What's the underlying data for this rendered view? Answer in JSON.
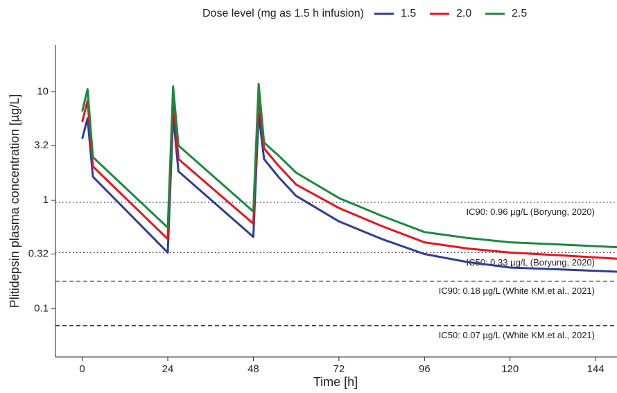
{
  "chart_data": {
    "type": "line",
    "y_label": "Plitidepsin plasma concentration [µg/L]",
    "x_label": "Time [h]",
    "legend_title": "Dose level (mg as 1.5 h infusion)",
    "legend_position": "top",
    "y_scale": "log",
    "x": [
      0,
      1.5,
      3,
      24,
      25.5,
      27,
      48,
      49.5,
      51,
      55,
      60,
      72,
      84,
      96,
      108,
      120,
      135,
      150
    ],
    "series": [
      {
        "name": "1.5",
        "color": "#2e3d98",
        "values": [
          3.7,
          5.7,
          1.65,
          0.33,
          6.1,
          1.85,
          0.46,
          6.3,
          2.4,
          1.65,
          1.1,
          0.64,
          0.44,
          0.32,
          0.27,
          0.24,
          0.23,
          0.22
        ]
      },
      {
        "name": "2.0",
        "color": "#e8141b",
        "values": [
          5.3,
          8.3,
          2.05,
          0.44,
          9.0,
          2.4,
          0.61,
          9.3,
          3.0,
          2.1,
          1.4,
          0.85,
          0.58,
          0.41,
          0.36,
          0.33,
          0.31,
          0.29
        ]
      },
      {
        "name": "2.5",
        "color": "#1a8a3e",
        "values": [
          6.6,
          10.6,
          2.5,
          0.56,
          11.2,
          3.2,
          0.79,
          11.8,
          3.4,
          2.6,
          1.8,
          1.05,
          0.72,
          0.51,
          0.45,
          0.41,
          0.39,
          0.37
        ]
      }
    ],
    "xlim": [
      -7.5,
      150
    ],
    "xticks": [
      0,
      24,
      48,
      72,
      96,
      120,
      144
    ],
    "ylim": [
      0.036,
      27
    ],
    "yticks": [
      0.1,
      0.32,
      1,
      3.2,
      10
    ],
    "reference_lines": [
      {
        "value": 0.96,
        "style": "dotted",
        "label": "IC90: 0.96 µg/L (Boryung, 2020)"
      },
      {
        "value": 0.33,
        "style": "dotted",
        "label": "IC50: 0.33 µg/L (Boryung, 2020)"
      },
      {
        "value": 0.18,
        "style": "dashed",
        "label": "IC90: 0.18 µg/L (White KM.et al., 2021)"
      },
      {
        "value": 0.07,
        "style": "dashed",
        "label": "IC50: 0.07 µg/L (White KM.et al., 2021)"
      }
    ]
  }
}
